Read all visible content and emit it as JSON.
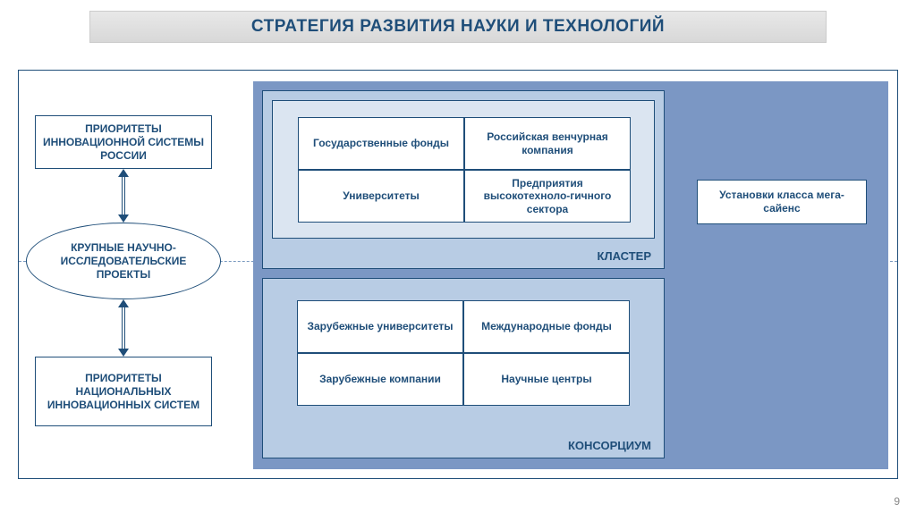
{
  "title": "СТРАТЕГИЯ РАЗВИТИЯ НАУКИ И ТЕХНОЛОГИЙ",
  "page_number": "9",
  "colors": {
    "accent": "#1f4e79",
    "panel_bg": "#7b97c4",
    "cluster_outer_bg": "#b8cce4",
    "cluster_inner_bg": "#dbe5f1",
    "titlebar_bg_top": "#e8e8e8",
    "titlebar_bg_bottom": "#d8d8d8"
  },
  "left_column": {
    "priorities_ru": "ПРИОРИТЕТЫ ИННОВАЦИОННОЙ СИСТЕМЫ РОССИИ",
    "projects": "КРУПНЫЕ НАУЧНО-ИССЛЕДОВАТЕЛЬСКИЕ ПРОЕКТЫ",
    "priorities_national": "ПРИОРИТЕТЫ НАЦИОНАЛЬНЫХ ИННОВАЦИОННЫХ СИСТЕМ"
  },
  "cluster": {
    "label": "КЛАСТЕР",
    "cells": [
      "Государственные фонды",
      "Российская венчурная компания",
      "Университеты",
      "Предприятия высокотехноло-гичного сектора"
    ]
  },
  "consortium": {
    "label": "КОНСОРЦИУМ",
    "cells": [
      "Зарубежные университеты",
      "Международные фонды",
      "Зарубежные компании",
      "Научные центры"
    ]
  },
  "mega_science": "Установки класса мега-сайенс"
}
